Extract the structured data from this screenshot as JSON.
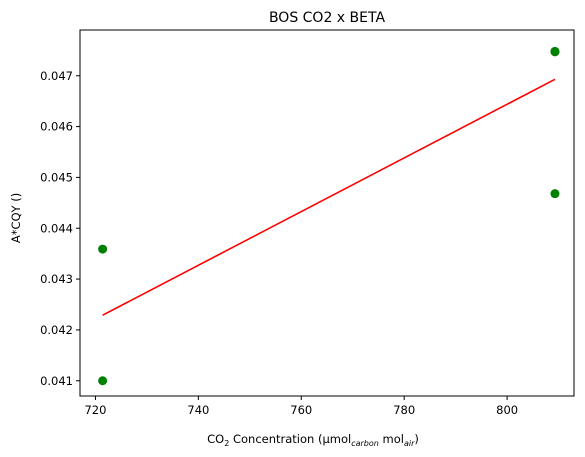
{
  "chart_data": {
    "type": "scatter",
    "title": "BOS CO2 x BETA",
    "xlabel": {
      "prefix": "CO",
      "prefix_sub": "2",
      "middle": " Concentration (µmol",
      "carbon_sub": "carbon",
      "space": " mol",
      "air_sub": "air",
      "suffix": ")"
    },
    "ylabel": "A*CQY ()",
    "xlim": [
      717,
      813
    ],
    "ylim": [
      0.0407,
      0.0479
    ],
    "xticks": [
      720,
      740,
      760,
      780,
      800
    ],
    "xtick_labels": [
      "720",
      "740",
      "760",
      "780",
      "800"
    ],
    "yticks": [
      0.041,
      0.042,
      0.043,
      0.044,
      0.045,
      0.046,
      0.047
    ],
    "ytick_labels": [
      "0.041",
      "0.042",
      "0.043",
      "0.044",
      "0.045",
      "0.046",
      "0.047"
    ],
    "points": [
      {
        "x": 721.4,
        "y": 0.041
      },
      {
        "x": 721.4,
        "y": 0.04359
      },
      {
        "x": 809.3,
        "y": 0.04468
      },
      {
        "x": 809.3,
        "y": 0.04747
      },
      {
        "x": 809.3,
        "y": 0.04748
      }
    ],
    "fit_line": {
      "x": [
        721.4,
        809.3
      ],
      "y": [
        0.04229,
        0.04693
      ]
    },
    "colors": {
      "points": "#008000",
      "fit_line": "#ff0000",
      "axes": "#000000"
    },
    "grid": false,
    "legend": "none"
  }
}
